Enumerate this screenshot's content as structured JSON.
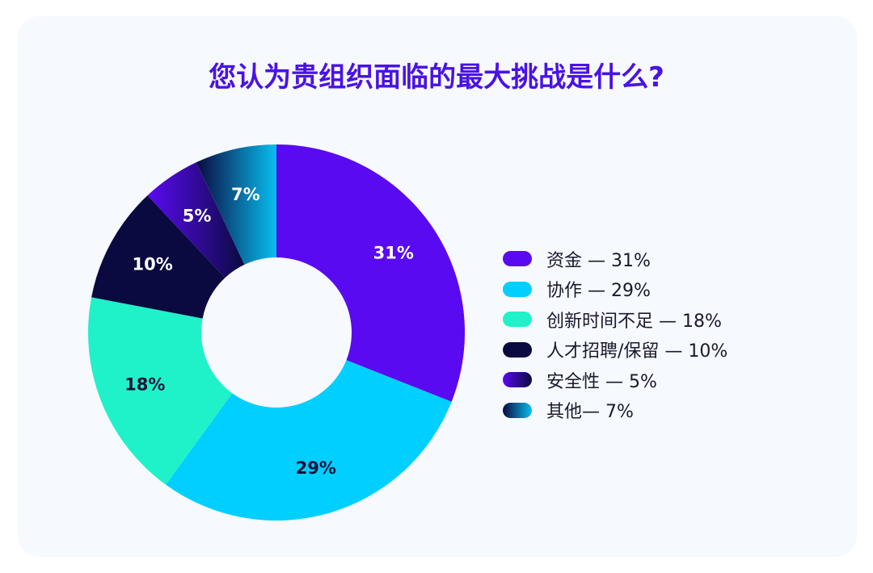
{
  "chart_data": {
    "type": "pie",
    "variant": "donut",
    "title": "您认为贵组织面临的最大挑战是什么?",
    "categories": [
      "资金",
      "协作",
      "创新时间不足",
      "人才招聘/保留",
      "安全性",
      "其他"
    ],
    "values": [
      31,
      29,
      18,
      10,
      5,
      7
    ],
    "slice_labels": [
      "31%",
      "29%",
      "18%",
      "10%",
      "5%",
      "7%"
    ],
    "legend_entries": [
      "资金 — 31%",
      "协作 — 29%",
      "创新时间不足 — 18%",
      "人才招聘/保留 — 10%",
      "安全性 — 5%",
      "其他— 7%"
    ],
    "colors": [
      "#5a0af0",
      "#00cfff",
      "#1ff2c9",
      "#0a0a40",
      "#3a0ccf",
      "#0580b8"
    ],
    "label_colors": [
      "#ffffff",
      "#14143a",
      "#14143a",
      "#ffffff",
      "#ffffff",
      "#ffffff"
    ],
    "legend_placement": "right"
  }
}
